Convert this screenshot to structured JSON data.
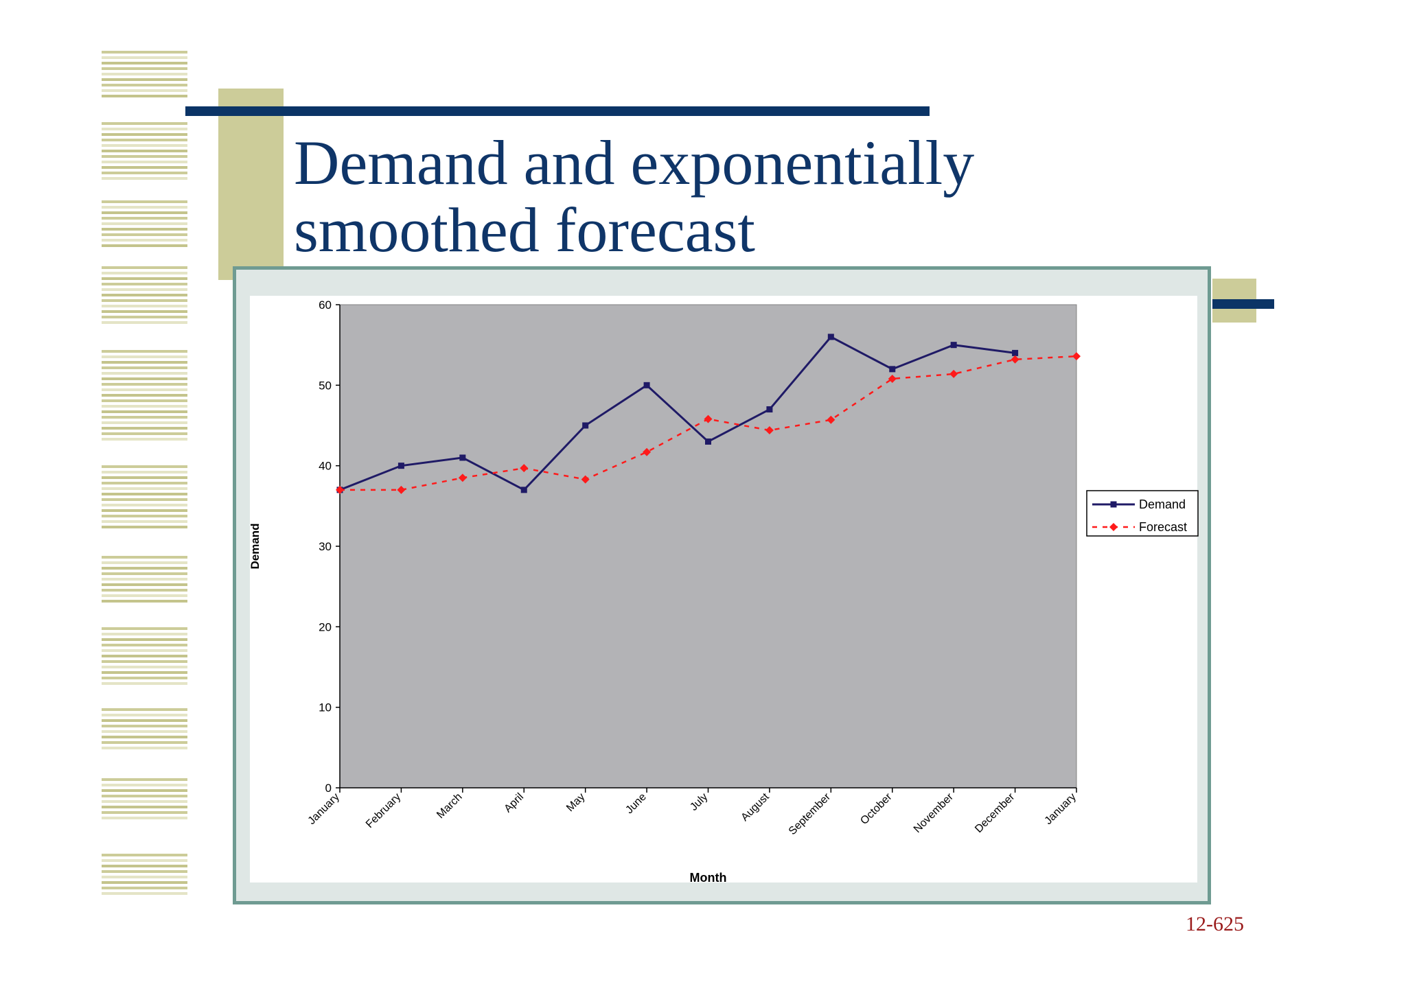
{
  "slide": {
    "title_line1": "Demand and exponentially",
    "title_line2": "smoothed forecast",
    "page_number": "12-625",
    "colors": {
      "title": "#0f3568",
      "accent_olive": "#cccc99",
      "accent_navy": "#0b3466",
      "frame": "#6f9b92",
      "page_number": "#9a1b1b"
    }
  },
  "chart_data": {
    "type": "line",
    "title": "",
    "xlabel": "Month",
    "ylabel": "Demand",
    "categories": [
      "January",
      "February",
      "March",
      "April",
      "May",
      "June",
      "July",
      "August",
      "September",
      "October",
      "November",
      "December",
      "January"
    ],
    "ylim": [
      0,
      60
    ],
    "yticks": [
      0,
      10,
      20,
      30,
      40,
      50,
      60
    ],
    "grid": false,
    "legend_position": "right",
    "plot_background": "#b3b3b6",
    "series": [
      {
        "name": "Demand",
        "values": [
          37,
          40,
          41,
          37,
          45,
          50,
          43,
          47,
          56,
          52,
          55,
          54,
          null
        ],
        "color": "#1f1a66",
        "line_style": "solid",
        "marker": "square"
      },
      {
        "name": "Forecast",
        "values": [
          37,
          37,
          38.5,
          39.7,
          38.3,
          41.7,
          45.8,
          44.4,
          45.7,
          50.8,
          51.4,
          53.2,
          53.6
        ],
        "color": "#ff1a1a",
        "line_style": "dashed",
        "marker": "diamond"
      }
    ]
  }
}
